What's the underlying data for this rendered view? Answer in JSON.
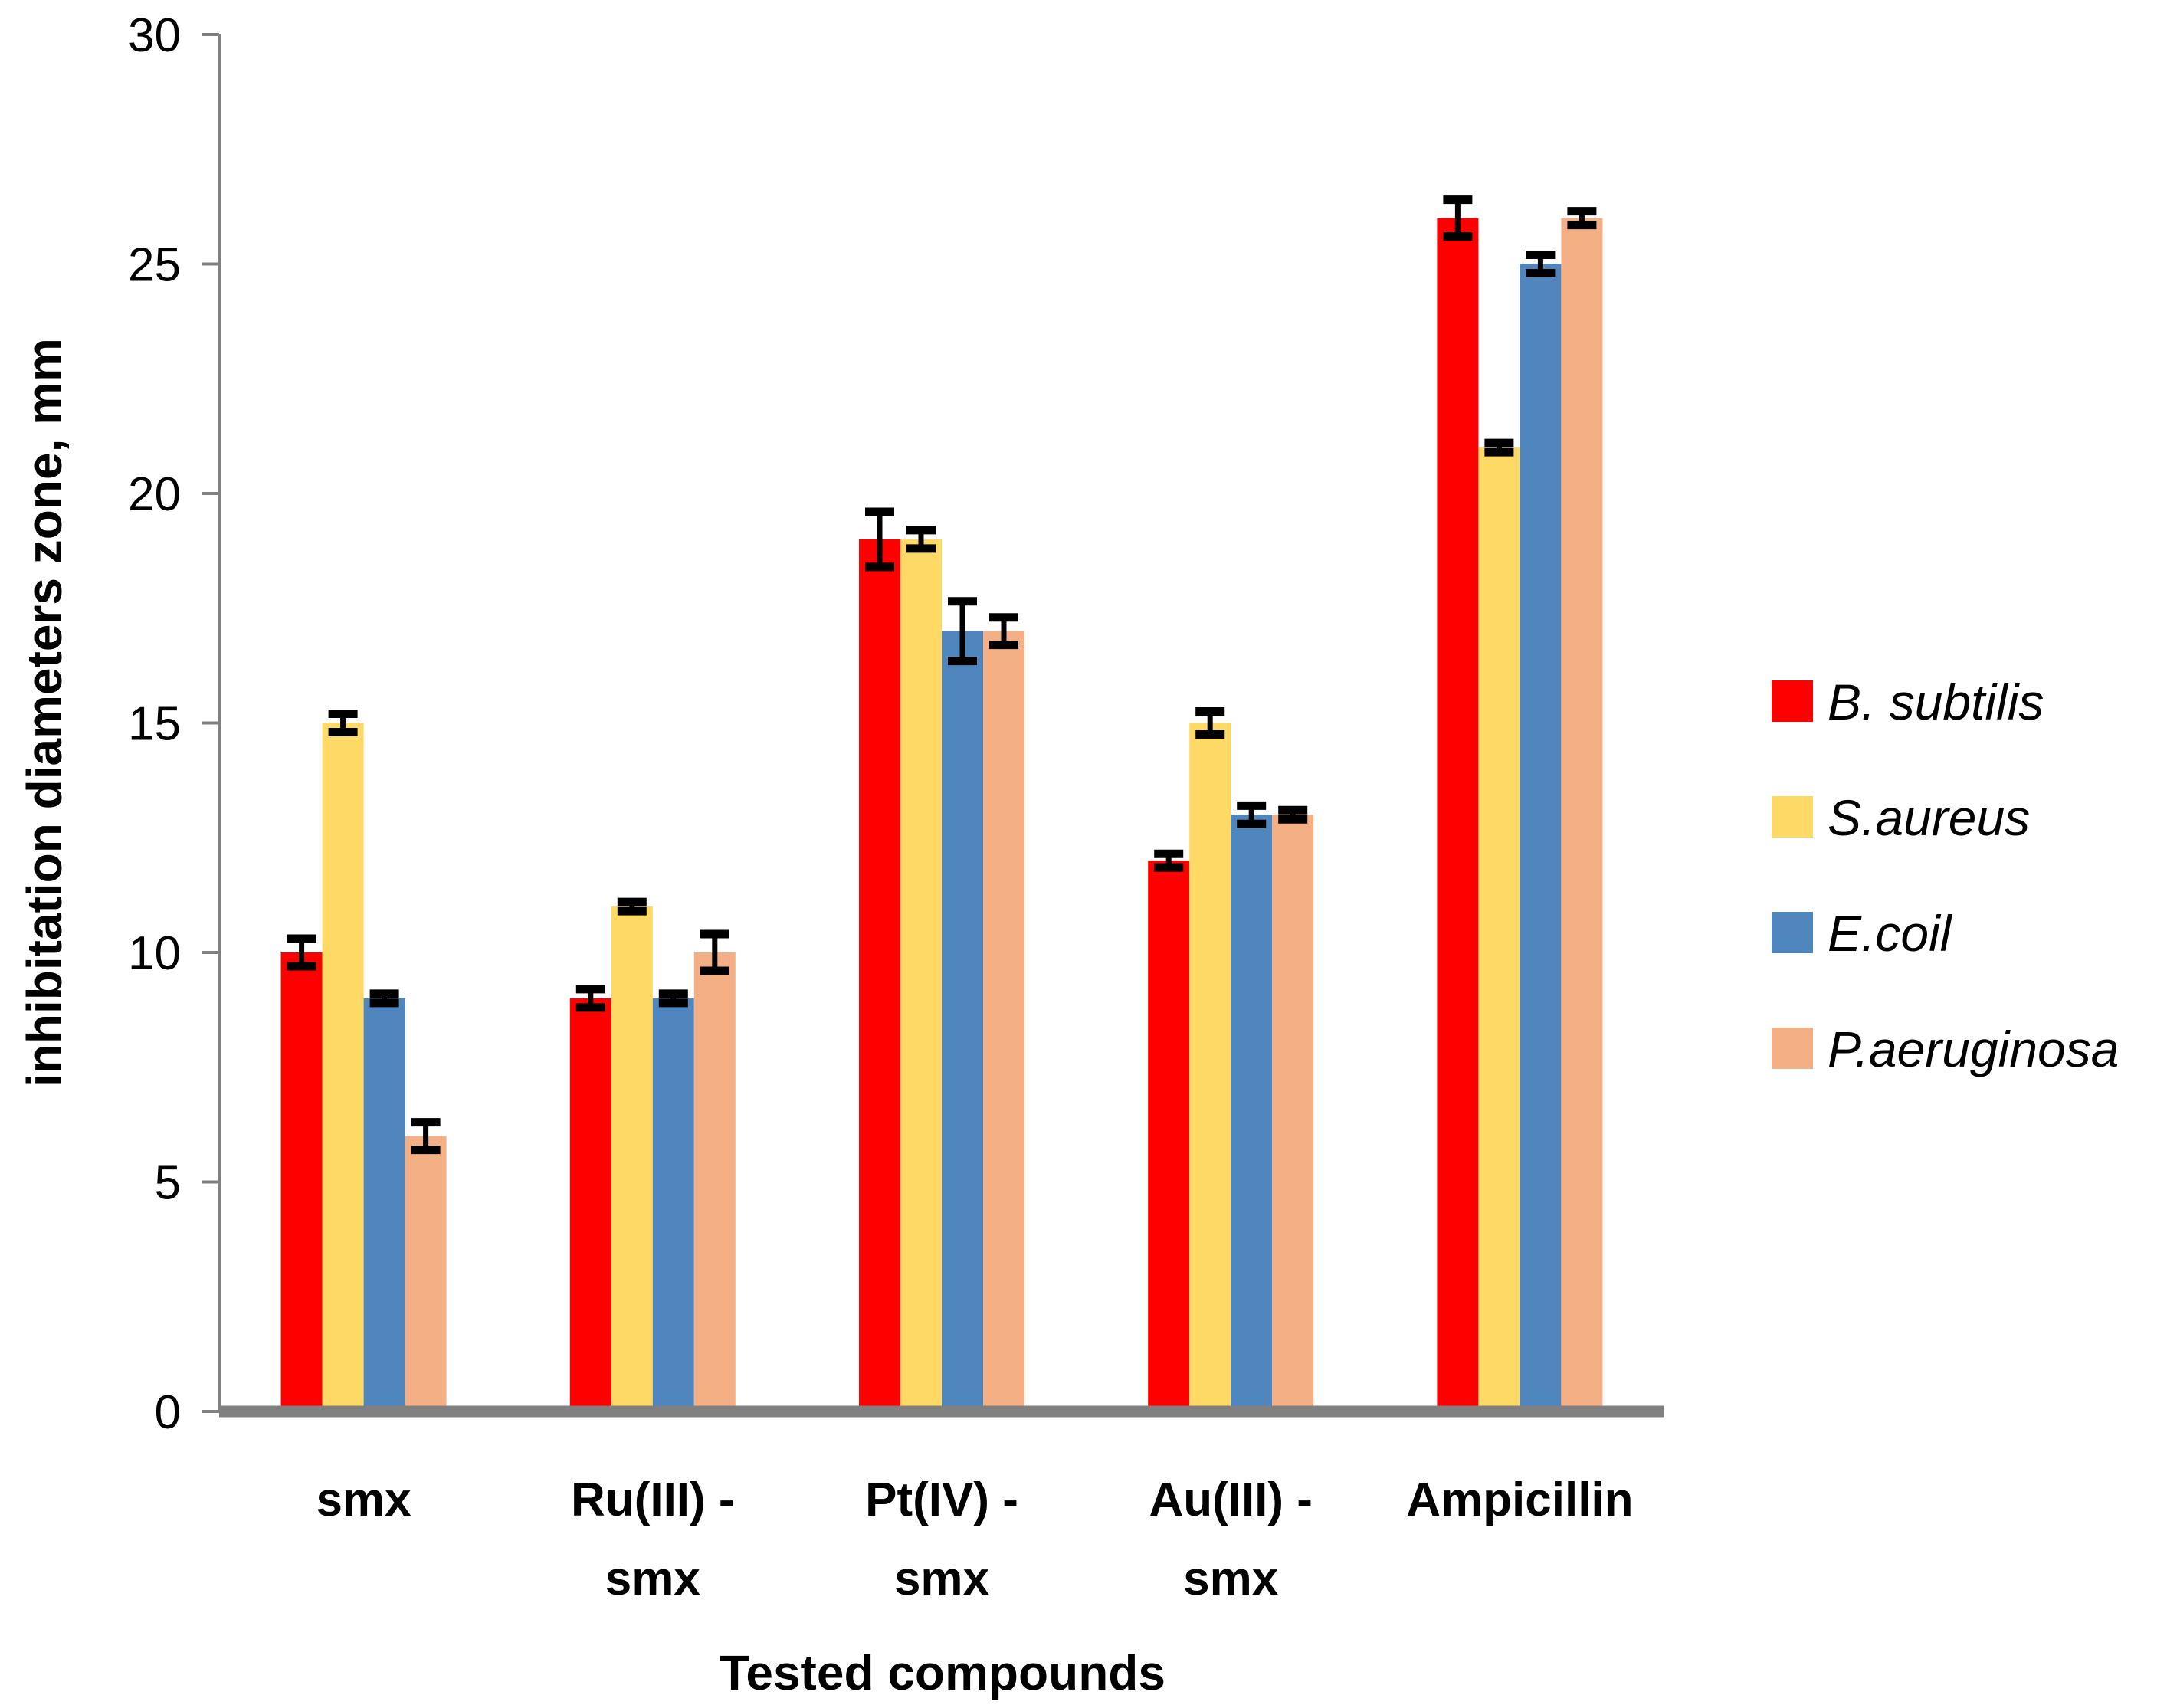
{
  "chart_data": {
    "type": "bar",
    "title": "",
    "xlabel": "Tested compounds",
    "ylabel": "inhibitation diameters zone, mm",
    "ylim": [
      0,
      30
    ],
    "yticks": [
      0,
      5,
      10,
      15,
      20,
      25,
      30
    ],
    "ytick_labels": [
      "0",
      "5",
      "10",
      "15",
      "20",
      "25",
      "30"
    ],
    "categories": [
      [
        "smx"
      ],
      [
        "Ru(III) -",
        "smx"
      ],
      [
        "Pt(IV) -",
        "smx"
      ],
      [
        "Au(III) -",
        "smx"
      ],
      [
        "Ampicillin"
      ]
    ],
    "legend_position": "right",
    "grid": false,
    "series": [
      {
        "name": "B. subtilis",
        "color": "#ff0000",
        "values": [
          10,
          9,
          19,
          12,
          26
        ],
        "errors": [
          0.3,
          0.2,
          0.6,
          0.15,
          0.4
        ]
      },
      {
        "name": "S.aureus",
        "color": "#ffd966",
        "values": [
          15,
          11,
          19,
          15,
          21
        ],
        "errors": [
          0.2,
          0.1,
          0.2,
          0.25,
          0.1
        ]
      },
      {
        "name": "E.coil",
        "color": "#4f86be",
        "values": [
          9,
          9,
          17,
          13,
          25
        ],
        "errors": [
          0.1,
          0.1,
          0.65,
          0.2,
          0.2
        ]
      },
      {
        "name": "P.aeruginosa",
        "color": "#f4b084",
        "values": [
          6,
          10,
          17,
          13,
          26
        ],
        "errors": [
          0.3,
          0.4,
          0.3,
          0.1,
          0.15
        ]
      }
    ],
    "axis_color": "#808080"
  }
}
